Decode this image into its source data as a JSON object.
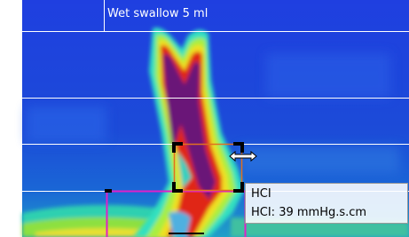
{
  "header": {
    "label": "Wet swallow 5 ml"
  },
  "tooltip": {
    "title": "HCI",
    "text": "HCI: 39 mmHg.s.cm"
  }
}
